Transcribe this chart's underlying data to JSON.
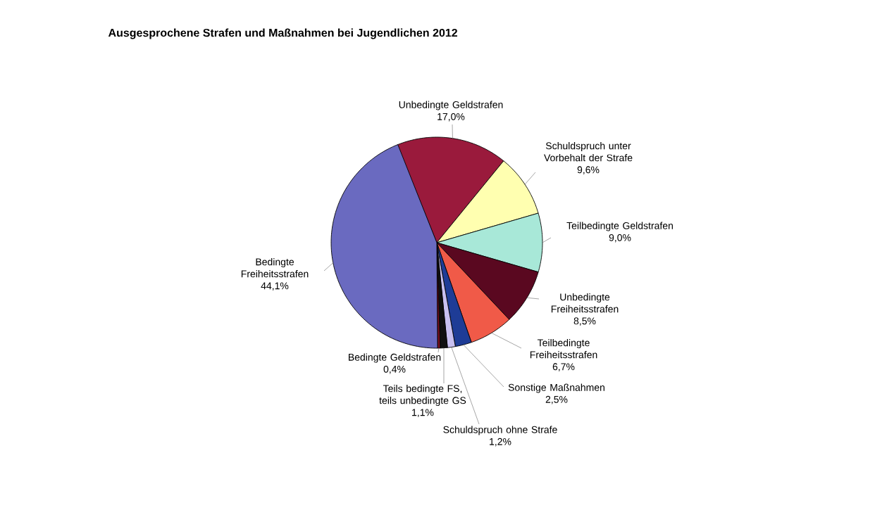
{
  "chart_data": {
    "type": "pie",
    "title": "Ausgesprochene Strafen und Maßnahmen bei Jugendlichen 2012",
    "categories": [
      "Unbedingte Geldstrafen",
      "Schuldspruch unter Vorbehalt der Strafe",
      "Teilbedingte Geldstrafen",
      "Unbedingte Freiheitsstrafen",
      "Teilbedingte Freiheitsstrafen",
      "Sonstige Maßnahmen",
      "Schuldspruch ohne Strafe",
      "Teils bedingte FS, teils unbedingte GS",
      "Bedingte Geldstrafen",
      "Bedingte Freiheitsstrafen"
    ],
    "values": [
      17.0,
      9.6,
      9.0,
      8.5,
      6.7,
      2.5,
      1.2,
      1.1,
      0.4,
      44.1
    ],
    "value_labels": [
      "17,0%",
      "9,6%",
      "9,0%",
      "8,5%",
      "6,7%",
      "2,5%",
      "1,2%",
      "1,1%",
      "0,4%",
      "44,1%"
    ],
    "colors": [
      "#9a1a3c",
      "#ffffb0",
      "#a8e8d8",
      "#5a0820",
      "#f05a48",
      "#1e3c96",
      "#c8c0f0",
      "#101010",
      "#7a1020",
      "#6a6ac0"
    ]
  }
}
